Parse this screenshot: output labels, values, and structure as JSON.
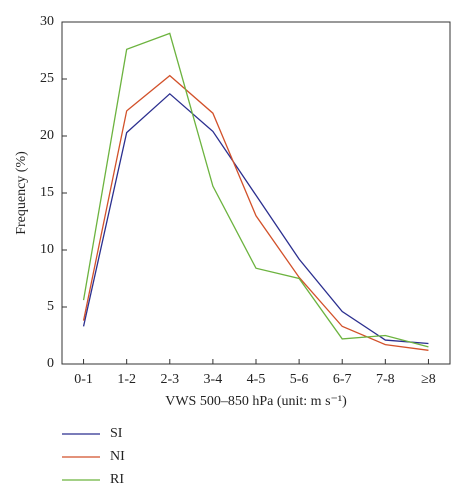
{
  "chart_data": {
    "type": "line",
    "categories": [
      "0-1",
      "1-2",
      "2-3",
      "3-4",
      "4-5",
      "5-6",
      "6-7",
      "7-8",
      "≥8"
    ],
    "series": [
      {
        "name": "SI",
        "color": "#2b2f8f",
        "values": [
          3.3,
          20.3,
          23.7,
          20.4,
          14.8,
          9.2,
          4.6,
          2.1,
          1.8
        ]
      },
      {
        "name": "NI",
        "color": "#d2512a",
        "values": [
          3.8,
          22.2,
          25.3,
          22.0,
          13.0,
          7.6,
          3.3,
          1.7,
          1.2
        ]
      },
      {
        "name": "RI",
        "color": "#6cb33f",
        "values": [
          5.6,
          27.6,
          29.0,
          15.6,
          8.4,
          7.5,
          2.2,
          2.5,
          1.5
        ]
      }
    ],
    "xlabel": "VWS 500–850 hPa (unit: m s⁻¹)",
    "ylabel": "Frequency (%)",
    "ylim": [
      0,
      30
    ],
    "yticks": [
      0,
      5,
      10,
      15,
      20,
      25,
      30
    ]
  }
}
